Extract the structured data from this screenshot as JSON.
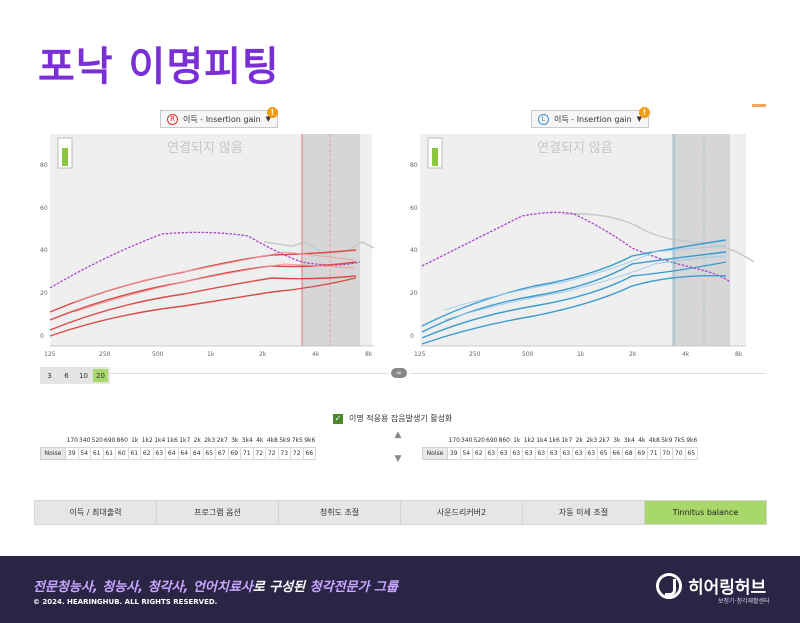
{
  "title": "포낙 이명피팅",
  "right_panel": {
    "ear_letter": "R",
    "gain_label": "이득 - Insertion gain",
    "status_text": "연결되지 않음",
    "color": "#d94a4a"
  },
  "left_panel": {
    "ear_letter": "L",
    "gain_label": "이득 - Insertion gain",
    "status_text": "연결되지 않음",
    "color": "#3a9bd0"
  },
  "chart": {
    "y_ticks": [
      "80",
      "60",
      "40",
      "20",
      "0"
    ],
    "x_ticks": [
      "125",
      "250",
      "500",
      "1k",
      "2k",
      "4k",
      "8k"
    ],
    "noise_color": "#a744c9"
  },
  "level_buttons": [
    "3",
    "6",
    "10",
    "20"
  ],
  "level_active": "20",
  "noise_checkbox_label": "이명 적응용 잡음발생기 활성화",
  "freq_headers": [
    "170",
    "340",
    "520",
    "690",
    "860",
    "1k",
    "1k2",
    "1k4",
    "1k6",
    "1k7",
    "2k",
    "2k3",
    "2k7",
    "3k",
    "3k4",
    "4k",
    "4k8",
    "5k9",
    "7k5",
    "9k6"
  ],
  "right_noise": {
    "label": "Noise",
    "values": [
      "39",
      "54",
      "61",
      "61",
      "60",
      "61",
      "62",
      "63",
      "64",
      "64",
      "64",
      "65",
      "67",
      "69",
      "71",
      "72",
      "72",
      "73",
      "72",
      "66"
    ]
  },
  "left_noise": {
    "label": "Noise",
    "values": [
      "39",
      "54",
      "62",
      "63",
      "63",
      "63",
      "63",
      "63",
      "63",
      "63",
      "63",
      "63",
      "65",
      "66",
      "68",
      "69",
      "71",
      "70",
      "70",
      "65"
    ]
  },
  "tabs": [
    "이득 / 최대출력",
    "프로그램 옵션",
    "청취도 조절",
    "사운드리커버2",
    "자동 미세 조절",
    "Tinnitus balance"
  ],
  "active_tab": "Tinnitus balance",
  "footer": {
    "tagline_part1": "전문청능사, 청능사, 청각사, 언어치료사",
    "tagline_part2": "로 구성된 ",
    "tagline_part3": "청각전문가 그룹",
    "copyright": "© 2024. HEARINGHUB. ALL RIGHTS RESERVED.",
    "brand_name": "히어링허브",
    "brand_sub": "보청기·청각재활센터"
  }
}
